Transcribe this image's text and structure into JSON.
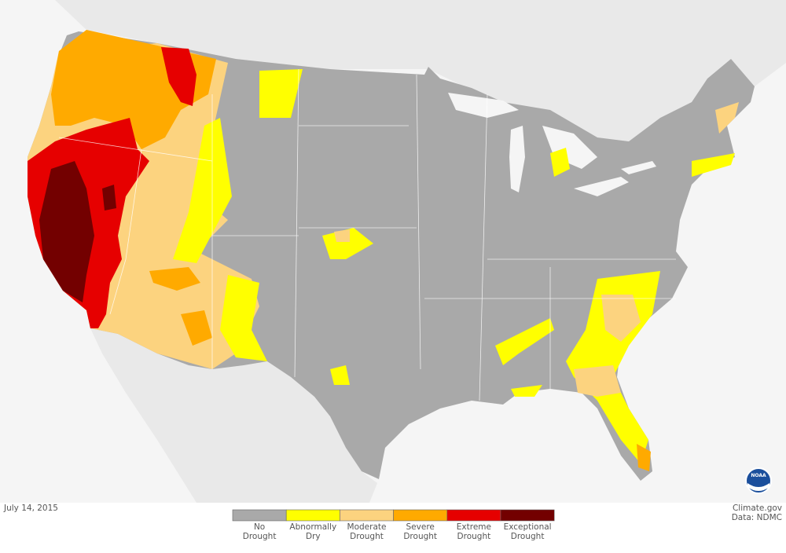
{
  "date": "July 14, 2015",
  "credits": [
    "Climate.gov",
    "Data: NDMC"
  ],
  "logo": "NOAA",
  "legend": [
    {
      "label": [
        "No",
        "Drought"
      ],
      "color": "#a9a9a9"
    },
    {
      "label": [
        "Abnormally",
        "Dry"
      ],
      "color": "#ffff00"
    },
    {
      "label": [
        "Moderate",
        "Drought"
      ],
      "color": "#fcd37f"
    },
    {
      "label": [
        "Severe",
        "Drought"
      ],
      "color": "#ffaa00"
    },
    {
      "label": [
        "Extreme",
        "Drought"
      ],
      "color": "#e60000"
    },
    {
      "label": [
        "Exceptional",
        "Drought"
      ],
      "color": "#730000"
    }
  ]
}
